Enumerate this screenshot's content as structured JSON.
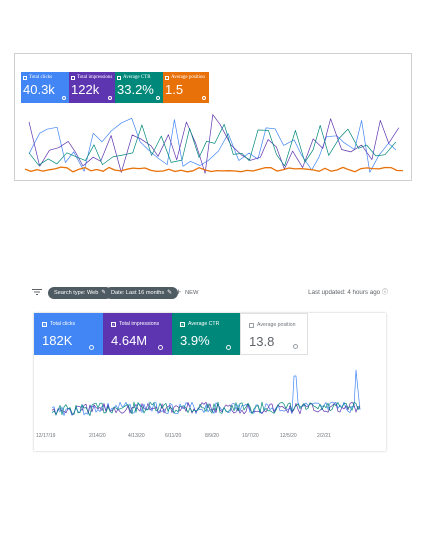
{
  "panel1": {
    "cards": [
      {
        "label": "Total clicks",
        "value": "40.3k",
        "color": "#4285f4"
      },
      {
        "label": "Total impressions",
        "value": "122k",
        "color": "#5e35b1"
      },
      {
        "label": "Average CTR",
        "value": "33.2%",
        "color": "#00897b"
      },
      {
        "label": "Average position",
        "value": "1.5",
        "color": "#e8710a"
      }
    ]
  },
  "panel2": {
    "toolbar": {
      "search_type": "Search type: Web",
      "date": "Date: Last 16 months",
      "new_label": "NEW",
      "last_updated": "Last updated: 4 hours ago"
    },
    "cards": [
      {
        "label": "Total clicks",
        "value": "182K",
        "color": "#4285f4",
        "checked": true
      },
      {
        "label": "Total impressions",
        "value": "4.64M",
        "color": "#5e35b1",
        "checked": true
      },
      {
        "label": "Average CTR",
        "value": "3.9%",
        "color": "#00897b",
        "checked": true
      },
      {
        "label": "Average position",
        "value": "13.8",
        "color": "#ffffff",
        "checked": false
      }
    ],
    "x_ticks": [
      "12/17/19",
      "2/14/20",
      "4/13/20",
      "6/11/20",
      "8/9/20",
      "10/7/20",
      "12/5/20",
      "2/2/21"
    ]
  }
}
